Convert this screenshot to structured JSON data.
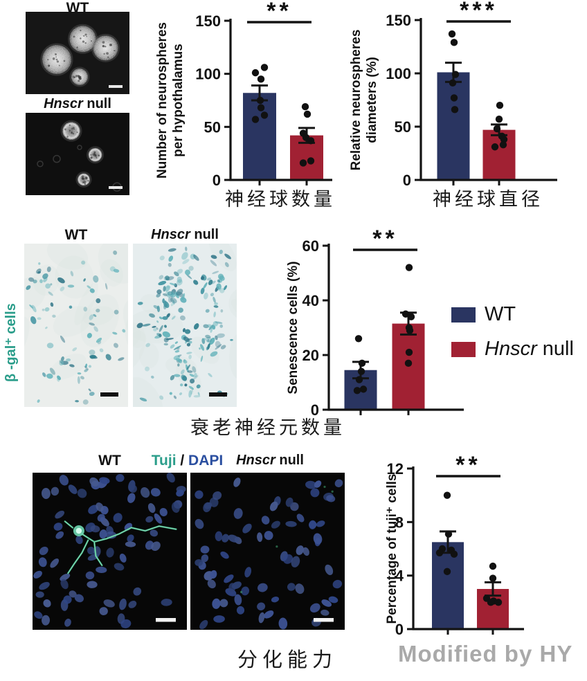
{
  "colors": {
    "navy": "#2a3561",
    "red": "#a12133",
    "teal": "#2a9d8a",
    "dapi": "#2b4fa0",
    "watermark": "#a9a9a9",
    "axis": "#141414"
  },
  "neurospheres": {
    "wt_label": "WT",
    "null_label": {
      "italic": "Hnscr",
      "rest": " null"
    }
  },
  "bgal": {
    "row_label": "β -gal⁺ cells",
    "wt_label": "WT",
    "null_label": {
      "italic": "Hnscr",
      "rest": " null"
    }
  },
  "fluor": {
    "wt_label": "WT",
    "stain": {
      "tuji": "Tuji",
      "sep": " / ",
      "dapi": "DAPI"
    },
    "null_label": {
      "italic": "Hnscr",
      "rest": " null"
    }
  },
  "legend": {
    "wt": "WT",
    "null_italic": "Hnscr",
    "null_rest": " null"
  },
  "watermark_text": "Modified by HY",
  "chart_data": [
    {
      "id": "neurosphere-count",
      "type": "bar",
      "caption": "神经球数量",
      "ylabel": [
        "Number of neurospheres",
        "per hypothalamus"
      ],
      "xlabel": "",
      "ylim": [
        0,
        150
      ],
      "yticks": [
        0,
        50,
        100,
        150
      ],
      "grid": false,
      "significance": "**",
      "categories": [
        "WT",
        "Hnscr null"
      ],
      "series": [
        {
          "name": "WT",
          "color": "navy",
          "mean": 82,
          "sem": 7,
          "points": [
            [
              101,
              -6
            ],
            [
              106,
              7
            ],
            [
              95,
              2
            ],
            [
              75,
              1
            ],
            [
              68,
              2
            ],
            [
              61,
              7
            ],
            [
              57,
              -6
            ]
          ]
        },
        {
          "name": "Hnscr null",
          "color": "red",
          "mean": 42,
          "sem": 7,
          "points": [
            [
              69,
              -2
            ],
            [
              62,
              1
            ],
            [
              44,
              -5
            ],
            [
              40,
              -1
            ],
            [
              37,
              6
            ],
            [
              18,
              6
            ],
            [
              16,
              -5
            ]
          ]
        }
      ]
    },
    {
      "id": "neurosphere-diameter",
      "type": "bar",
      "caption": "神经球直径",
      "ylabel": [
        "Relative neurospheres",
        "diameters (%)"
      ],
      "xlabel": "",
      "ylim": [
        0,
        150
      ],
      "yticks": [
        0,
        50,
        100,
        150
      ],
      "grid": false,
      "significance": "***",
      "categories": [
        "WT",
        "Hnscr null"
      ],
      "series": [
        {
          "name": "WT",
          "color": "navy",
          "mean": 101,
          "sem": 9,
          "points": [
            [
              137,
              -2
            ],
            [
              129,
              1
            ],
            [
              99,
              3
            ],
            [
              91,
              -1
            ],
            [
              77,
              1
            ],
            [
              66,
              2
            ]
          ]
        },
        {
          "name": "Hnscr null",
          "color": "red",
          "mean": 47,
          "sem": 5,
          "points": [
            [
              70,
              1
            ],
            [
              57,
              0
            ],
            [
              48,
              -3
            ],
            [
              41,
              4
            ],
            [
              38,
              7
            ],
            [
              33,
              6
            ],
            [
              31,
              -6
            ]
          ]
        }
      ]
    },
    {
      "id": "senescence-cells",
      "type": "bar",
      "caption": "衰老神经元数量",
      "ylabel": [
        "Senescence cells (%)"
      ],
      "xlabel": "",
      "ylim": [
        0,
        60
      ],
      "yticks": [
        0,
        20,
        40,
        60
      ],
      "grid": false,
      "significance": "**",
      "legend_position": "right",
      "categories": [
        "WT",
        "Hnscr null"
      ],
      "series": [
        {
          "name": "WT",
          "color": "navy",
          "mean": 14.5,
          "sem": 3,
          "points": [
            [
              26,
              -3
            ],
            [
              17,
              2
            ],
            [
              14,
              1
            ],
            [
              11,
              -2
            ],
            [
              7.5,
              4
            ],
            [
              7,
              -5
            ]
          ]
        },
        {
          "name": "Hnscr null",
          "color": "red",
          "mean": 31.5,
          "sem": 4,
          "points": [
            [
              52,
              1
            ],
            [
              35,
              -4
            ],
            [
              34,
              4
            ],
            [
              30,
              1
            ],
            [
              29,
              2
            ],
            [
              21,
              1
            ],
            [
              17,
              0
            ]
          ]
        }
      ]
    },
    {
      "id": "tuji-cells",
      "type": "bar",
      "caption": "分化能力",
      "ylabel": [
        "Percentage of tuji⁺ cells"
      ],
      "xlabel": "",
      "ylim": [
        0,
        12
      ],
      "yticks": [
        0,
        4,
        8,
        12
      ],
      "grid": false,
      "significance": "**",
      "categories": [
        "WT",
        "Hnscr null"
      ],
      "series": [
        {
          "name": "WT",
          "color": "navy",
          "mean": 6.5,
          "sem": 0.8,
          "points": [
            [
              10,
              -1
            ],
            [
              7.1,
              1
            ],
            [
              6.0,
              -8
            ],
            [
              5.9,
              5
            ],
            [
              5.7,
              -12
            ],
            [
              5.6,
              9
            ],
            [
              4.3,
              -1
            ]
          ]
        },
        {
          "name": "Hnscr null",
          "color": "red",
          "mean": 3.0,
          "sem": 0.5,
          "points": [
            [
              4.7,
              0
            ],
            [
              3.8,
              0
            ],
            [
              2.3,
              -9
            ],
            [
              2.1,
              1
            ],
            [
              2.0,
              -3
            ],
            [
              2.0,
              8
            ]
          ]
        }
      ]
    }
  ],
  "images": {
    "neurospheres": {
      "wt": {
        "bg": "#161616",
        "style": "solid",
        "spheres": [
          [
            0.55,
            0.33,
            19
          ],
          [
            0.3,
            0.58,
            21
          ],
          [
            0.77,
            0.44,
            18
          ],
          [
            0.52,
            0.79,
            12
          ]
        ]
      },
      "null": {
        "bg": "#0f0f0f",
        "style": "ring",
        "spheres": [
          [
            0.44,
            0.22,
            13
          ],
          [
            0.67,
            0.51,
            10
          ],
          [
            0.56,
            0.81,
            9
          ]
        ],
        "rings": [
          [
            0.3,
            0.56,
            5
          ],
          [
            0.88,
            0.9,
            6
          ],
          [
            0.52,
            0.42,
            3
          ],
          [
            0.14,
            0.62,
            4
          ]
        ]
      }
    },
    "bgal": {
      "wt": {
        "bg": "#ebeeec",
        "count": 82,
        "seed": 11,
        "sigma": 0.16,
        "uniform": 0.35,
        "clusters": [
          [
            0.22,
            0.18
          ],
          [
            0.18,
            0.5
          ],
          [
            0.32,
            0.78
          ],
          [
            0.68,
            0.3
          ],
          [
            0.55,
            0.88
          ],
          [
            0.75,
            0.62
          ]
        ]
      },
      "null": {
        "bg": "#e6edee",
        "count": 190,
        "seed": 23,
        "sigma": 0.13,
        "uniform": 0.22,
        "clusters": [
          [
            0.45,
            0.18
          ],
          [
            0.75,
            0.28
          ],
          [
            0.3,
            0.48
          ],
          [
            0.52,
            0.68
          ],
          [
            0.55,
            0.86
          ],
          [
            0.8,
            0.55
          ],
          [
            0.35,
            0.3
          ]
        ]
      }
    },
    "fluor": {
      "wt": {
        "bg": "#070707",
        "count": 78,
        "seed": 5,
        "neuron": {
          "soma": [
            0.3,
            0.37
          ],
          "paths": [
            [
              [
                0.32,
                0.39
              ],
              [
                0.4,
                0.44
              ],
              [
                0.48,
                0.42
              ],
              [
                0.56,
                0.39
              ],
              [
                0.64,
                0.35
              ],
              [
                0.73,
                0.37
              ],
              [
                0.82,
                0.34
              ],
              [
                0.93,
                0.36
              ]
            ],
            [
              [
                0.36,
                0.43
              ],
              [
                0.32,
                0.51
              ],
              [
                0.27,
                0.58
              ],
              [
                0.23,
                0.64
              ]
            ],
            [
              [
                0.4,
                0.44
              ],
              [
                0.41,
                0.53
              ],
              [
                0.45,
                0.59
              ]
            ],
            [
              [
                0.26,
                0.35
              ],
              [
                0.21,
                0.31
              ]
            ]
          ]
        }
      },
      "null": {
        "bg": "#070707",
        "count": 74,
        "seed": 9,
        "specks": [
          [
            0.87,
            0.09
          ],
          [
            0.56,
            0.47
          ],
          [
            0.33,
            0.76
          ],
          [
            0.92,
            0.12
          ]
        ]
      }
    }
  }
}
